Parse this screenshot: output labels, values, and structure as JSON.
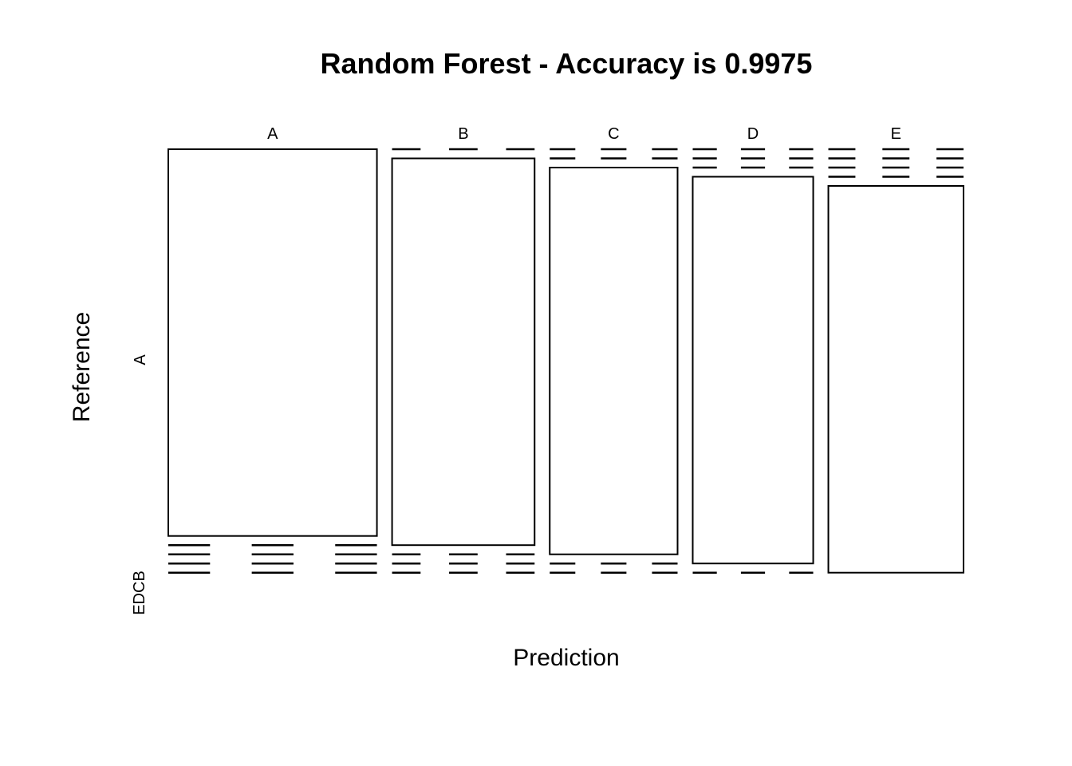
{
  "chart_data": {
    "type": "mosaic",
    "title": "Random Forest - Accuracy is  0.9975",
    "xlabel": "Prediction",
    "ylabel": "Reference",
    "prediction_levels": [
      "A",
      "B",
      "C",
      "D",
      "E"
    ],
    "reference_levels": [
      "A",
      "B",
      "C",
      "D",
      "E"
    ],
    "reference_axis_labels": [
      "A",
      "EDCB"
    ],
    "highlighted_cell": {
      "prediction": "C",
      "reference": "A",
      "fill": "#000000"
    },
    "column_shares": [
      0.284,
      0.194,
      0.174,
      0.164,
      0.184
    ],
    "cells_by_prediction": [
      {
        "prediction": "A",
        "segments": [
          {
            "reference": "A",
            "share": 0.918
          },
          {
            "reference": "B",
            "share": 0.0
          },
          {
            "reference": "C",
            "share": 0.0
          },
          {
            "reference": "D",
            "share": 0.0
          },
          {
            "reference": "E",
            "share": 0.0
          }
        ]
      },
      {
        "prediction": "B",
        "segments": [
          {
            "reference": "B",
            "share": 0.918
          },
          {
            "reference": "A",
            "share": 0.0
          },
          {
            "reference": "C",
            "share": 0.0
          },
          {
            "reference": "D",
            "share": 0.0
          },
          {
            "reference": "E",
            "share": 0.0
          }
        ]
      },
      {
        "prediction": "C",
        "segments": [
          {
            "reference": "C",
            "share": 0.918
          },
          {
            "reference": "A",
            "share": 0.0
          },
          {
            "reference": "B",
            "share": 0.0
          },
          {
            "reference": "D",
            "share": 0.0
          },
          {
            "reference": "E",
            "share": 0.0
          }
        ]
      },
      {
        "prediction": "D",
        "segments": [
          {
            "reference": "D",
            "share": 0.918
          },
          {
            "reference": "A",
            "share": 0.0
          },
          {
            "reference": "B",
            "share": 0.0
          },
          {
            "reference": "C",
            "share": 0.0
          },
          {
            "reference": "E",
            "share": 0.0
          }
        ]
      },
      {
        "prediction": "E",
        "segments": [
          {
            "reference": "E",
            "share": 0.918
          },
          {
            "reference": "A",
            "share": 0.0
          },
          {
            "reference": "B",
            "share": 0.0
          },
          {
            "reference": "C",
            "share": 0.0
          },
          {
            "reference": "D",
            "share": 0.0
          }
        ]
      }
    ],
    "colors": {
      "cell_fill": "#ffffff",
      "highlight_fill": "#000000",
      "stroke": "#000000"
    }
  }
}
